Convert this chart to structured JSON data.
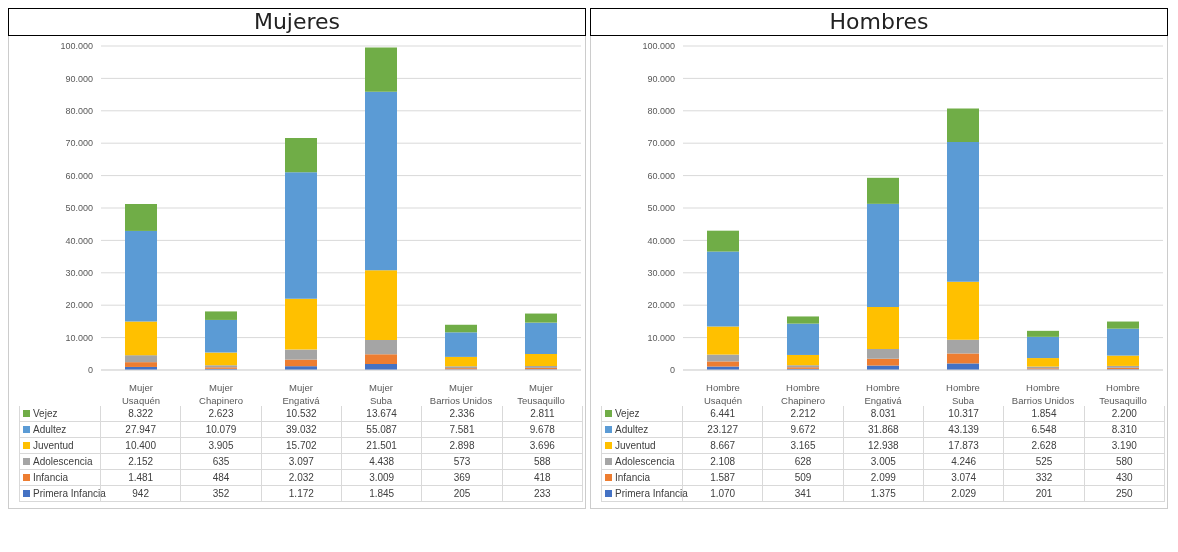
{
  "chart_data": [
    {
      "type": "bar",
      "title": "Mujeres",
      "stacked": true,
      "legend": "bottom",
      "grid": "y",
      "categories": [
        "Mujer Usaquén",
        "Mujer Chapinero",
        "Mujer Engativá",
        "Mujer Suba",
        "Mujer Barrios Unidos",
        "Mujer Teusaquillo"
      ],
      "ylim": [
        0,
        100000
      ],
      "yticks": [
        {
          "value": 0,
          "label": "0"
        },
        {
          "value": 10000,
          "label": "10.000"
        },
        {
          "value": 20000,
          "label": "20.000"
        },
        {
          "value": 30000,
          "label": "30.000"
        },
        {
          "value": 40000,
          "label": "40.000"
        },
        {
          "value": 50000,
          "label": "50.000"
        },
        {
          "value": 60000,
          "label": "60.000"
        },
        {
          "value": 70000,
          "label": "70.000"
        },
        {
          "value": 80000,
          "label": "80.000"
        },
        {
          "value": 90000,
          "label": "90.000"
        },
        {
          "value": 100000,
          "label": "100.000"
        }
      ],
      "series": [
        {
          "name": "Primera Infancia",
          "color": "#4472c4",
          "values": [
            942,
            352,
            1172,
            1845,
            205,
            233
          ],
          "value_labels": [
            "942",
            "352",
            "1.172",
            "1.845",
            "205",
            "233"
          ]
        },
        {
          "name": "Infancia",
          "color": "#ed7d31",
          "values": [
            1481,
            484,
            2032,
            3009,
            369,
            418
          ],
          "value_labels": [
            "1.481",
            "484",
            "2.032",
            "3.009",
            "369",
            "418"
          ]
        },
        {
          "name": "Adolescencia",
          "color": "#a5a5a5",
          "values": [
            2152,
            635,
            3097,
            4438,
            573,
            588
          ],
          "value_labels": [
            "2.152",
            "635",
            "3.097",
            "4.438",
            "573",
            "588"
          ]
        },
        {
          "name": "Juventud",
          "color": "#ffc000",
          "values": [
            10400,
            3905,
            15702,
            21501,
            2898,
            3696
          ],
          "value_labels": [
            "10.400",
            "3.905",
            "15.702",
            "21.501",
            "2.898",
            "3.696"
          ]
        },
        {
          "name": "Adultez",
          "color": "#5b9bd5",
          "values": [
            27947,
            10079,
            39032,
            55087,
            7581,
            9678
          ],
          "value_labels": [
            "27.947",
            "10.079",
            "39.032",
            "55.087",
            "7.581",
            "9.678"
          ]
        },
        {
          "name": "Vejez",
          "color": "#70ad47",
          "values": [
            8322,
            2623,
            10532,
            13674,
            2336,
            2811
          ],
          "value_labels": [
            "8.322",
            "2.623",
            "10.532",
            "13.674",
            "2.336",
            "2.811"
          ]
        }
      ]
    },
    {
      "type": "bar",
      "title": "Hombres",
      "stacked": true,
      "legend": "bottom",
      "grid": "y",
      "categories": [
        "Hombre Usaquén",
        "Hombre Chapinero",
        "Hombre Engativá",
        "Hombre Suba",
        "Hombre Barrios Unidos",
        "Hombre Teusaquillo"
      ],
      "ylim": [
        0,
        100000
      ],
      "yticks": [
        {
          "value": 0,
          "label": "0"
        },
        {
          "value": 10000,
          "label": "10.000"
        },
        {
          "value": 20000,
          "label": "20.000"
        },
        {
          "value": 30000,
          "label": "30.000"
        },
        {
          "value": 40000,
          "label": "40.000"
        },
        {
          "value": 50000,
          "label": "50.000"
        },
        {
          "value": 60000,
          "label": "60.000"
        },
        {
          "value": 70000,
          "label": "70.000"
        },
        {
          "value": 80000,
          "label": "80.000"
        },
        {
          "value": 90000,
          "label": "90.000"
        },
        {
          "value": 100000,
          "label": "100.000"
        }
      ],
      "series": [
        {
          "name": "Primera Infancia",
          "color": "#4472c4",
          "values": [
            1070,
            341,
            1375,
            2029,
            201,
            250
          ],
          "value_labels": [
            "1.070",
            "341",
            "1.375",
            "2.029",
            "201",
            "250"
          ]
        },
        {
          "name": "Infancia",
          "color": "#ed7d31",
          "values": [
            1587,
            509,
            2099,
            3074,
            332,
            430
          ],
          "value_labels": [
            "1.587",
            "509",
            "2.099",
            "3.074",
            "332",
            "430"
          ]
        },
        {
          "name": "Adolescencia",
          "color": "#a5a5a5",
          "values": [
            2108,
            628,
            3005,
            4246,
            525,
            580
          ],
          "value_labels": [
            "2.108",
            "628",
            "3.005",
            "4.246",
            "525",
            "580"
          ]
        },
        {
          "name": "Juventud",
          "color": "#ffc000",
          "values": [
            8667,
            3165,
            12938,
            17873,
            2628,
            3190
          ],
          "value_labels": [
            "8.667",
            "3.165",
            "12.938",
            "17.873",
            "2.628",
            "3.190"
          ]
        },
        {
          "name": "Adultez",
          "color": "#5b9bd5",
          "values": [
            23127,
            9672,
            31868,
            43139,
            6548,
            8310
          ],
          "value_labels": [
            "23.127",
            "9.672",
            "31.868",
            "43.139",
            "6.548",
            "8.310"
          ]
        },
        {
          "name": "Vejez",
          "color": "#70ad47",
          "values": [
            6441,
            2212,
            8031,
            10317,
            1854,
            2200
          ],
          "value_labels": [
            "6.441",
            "2.212",
            "8.031",
            "10.317",
            "1.854",
            "2.200"
          ]
        }
      ]
    }
  ]
}
